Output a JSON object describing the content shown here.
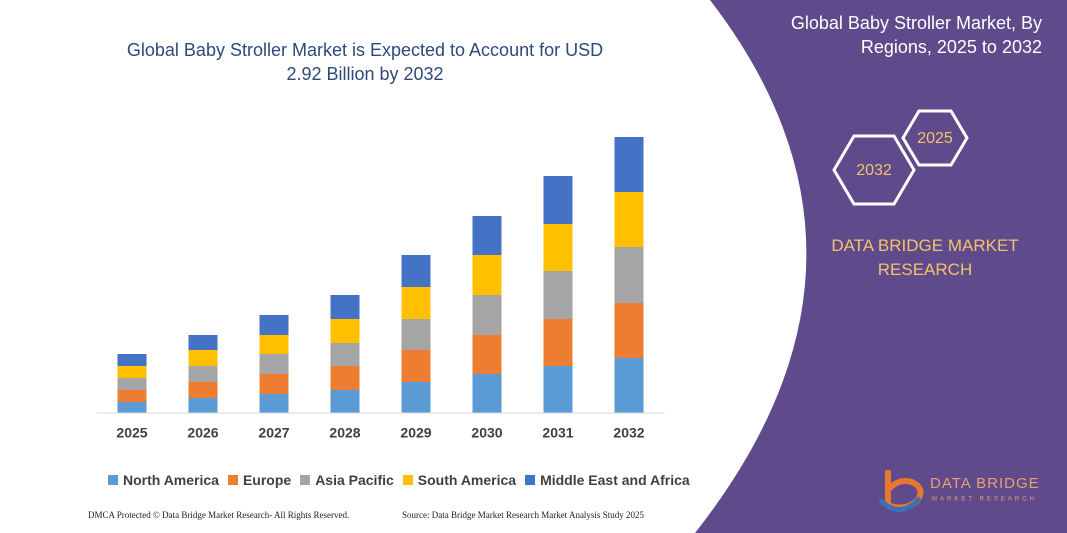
{
  "chart_data": {
    "type": "stacked_bar",
    "title": "Global Baby Stroller Market is Expected to Account for USD 2.92 Billion by 2032",
    "categories": [
      "2025",
      "2026",
      "2027",
      "2028",
      "2029",
      "2030",
      "2031",
      "2032"
    ],
    "series": [
      {
        "name": "North America",
        "color": "#5b9bd5",
        "values": [
          11,
          15,
          19,
          23,
          31,
          39,
          47,
          55
        ]
      },
      {
        "name": "Europe",
        "color": "#ed7d31",
        "values": [
          12,
          16,
          20,
          24,
          32,
          39,
          47,
          55
        ]
      },
      {
        "name": "Asia Pacific",
        "color": "#a5a5a5",
        "values": [
          12,
          16,
          20,
          23,
          31,
          40,
          48,
          56
        ]
      },
      {
        "name": "South America",
        "color": "#ffc000",
        "values": [
          12,
          16,
          19,
          24,
          32,
          40,
          47,
          55
        ]
      },
      {
        "name": "Middle East and Africa",
        "color": "#4472c4",
        "values": [
          12,
          15,
          20,
          24,
          32,
          39,
          48,
          55
        ]
      }
    ],
    "ylim": [
      0,
      300
    ]
  },
  "panel": {
    "title": "Global Baby Stroller Market, By Regions, 2025 to 2032",
    "hexagons": [
      "2032",
      "2025"
    ],
    "brand": "DATA BRIDGE MARKET RESEARCH",
    "logo": {
      "name": "DATA BRIDGE",
      "tagline": "MARKET RESEARCH"
    }
  },
  "footer": {
    "left": "DMCA Protected © Data Bridge Market Research- All Rights Reserved.",
    "right": "Source: Data Bridge Market Research Market Analysis Study 2025"
  }
}
